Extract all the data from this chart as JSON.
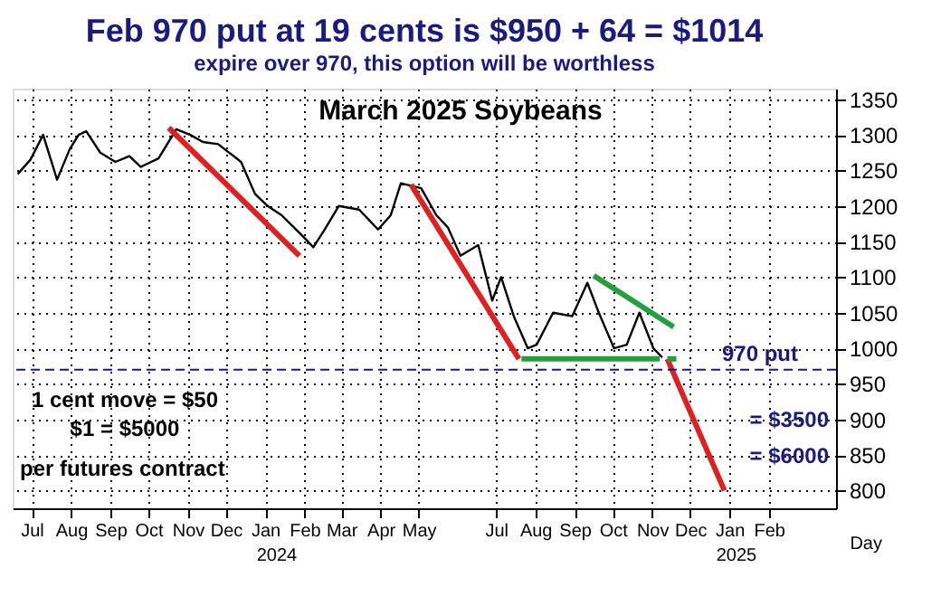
{
  "chart_data": {
    "type": "line",
    "title": "Feb 970 put at 19 cents is $950 + 64 = $1014",
    "subtitle": "expire over 970, this option will be worthless",
    "xlabel": "Day",
    "series": [
      {
        "color": "#000000",
        "x": [
          "2023-07-05",
          "2023-07-15",
          "2023-07-25",
          "2023-08-05",
          "2023-08-15",
          "2023-08-22",
          "2023-08-28",
          "2023-09-08",
          "2023-09-20",
          "2023-10-01",
          "2023-10-10",
          "2023-10-24",
          "2023-11-07",
          "2023-11-18",
          "2023-11-28",
          "2023-12-10",
          "2023-12-28",
          "2024-01-08",
          "2024-01-18",
          "2024-01-29",
          "2024-02-15",
          "2024-02-23",
          "2024-03-03",
          "2024-03-14",
          "2024-03-30",
          "2024-04-14",
          "2024-04-24",
          "2024-05-02",
          "2024-05-18",
          "2024-05-30",
          "2024-06-08",
          "2024-06-18",
          "2024-07-02",
          "2024-07-13",
          "2024-07-20",
          "2024-07-30",
          "2024-08-10",
          "2024-08-17",
          "2024-08-30",
          "2024-09-14",
          "2024-09-26",
          "2024-10-05",
          "2024-10-17",
          "2024-10-27",
          "2024-11-06",
          "2024-11-17",
          "2024-11-24"
        ],
        "values": [
          1245,
          1265,
          1300,
          1237,
          1280,
          1300,
          1305,
          1275,
          1262,
          1270,
          1255,
          1267,
          1308,
          1300,
          1290,
          1287,
          1262,
          1217,
          1200,
          1187,
          1157,
          1142,
          1167,
          1200,
          1195,
          1167,
          1187,
          1232,
          1225,
          1187,
          1170,
          1130,
          1145,
          1067,
          1100,
          1045,
          1000,
          1005,
          1050,
          1045,
          1092,
          1050,
          1000,
          1005,
          1050,
          1000,
          987
        ]
      },
      {
        "color": "#e02020",
        "x": [
          "2023-11-01",
          "2024-02-12"
        ],
        "values": [
          1310,
          1130
        ]
      },
      {
        "color": "#e02020",
        "x": [
          "2024-05-10",
          "2024-08-03"
        ],
        "values": [
          1230,
          985
        ]
      },
      {
        "color": "#e02020",
        "x": [
          "2024-11-28",
          "2025-01-12"
        ],
        "values": [
          985,
          800
        ]
      },
      {
        "color": "#22a040",
        "x": [
          "2024-10-01",
          "2024-12-03"
        ],
        "values": [
          1102,
          1030
        ]
      },
      {
        "color": "#22a040",
        "x": [
          "2024-08-05",
          "2024-11-22"
        ],
        "values": [
          985,
          985
        ]
      },
      {
        "color": "#22a040",
        "x": [
          "2024-11-28",
          "2024-12-08"
        ],
        "values": [
          985,
          985
        ],
        "line_style": "dashed"
      }
    ],
    "xlim": [
      "2023-07-01",
      "2025-04-10"
    ],
    "xticks": [
      {
        "value": "2023-07-16",
        "label": "Jul"
      },
      {
        "value": "2023-08-16",
        "label": "Aug"
      },
      {
        "value": "2023-09-16",
        "label": "Sep"
      },
      {
        "value": "2023-10-16",
        "label": "Oct"
      },
      {
        "value": "2023-11-16",
        "label": "Nov"
      },
      {
        "value": "2023-12-16",
        "label": "Dec"
      },
      {
        "value": "2024-01-16",
        "label": "Jan"
      },
      {
        "value": "2024-02-16",
        "label": "Feb"
      },
      {
        "value": "2024-03-16",
        "label": "Mar"
      },
      {
        "value": "2024-04-16",
        "label": "Apr"
      },
      {
        "value": "2024-05-16",
        "label": "May"
      },
      {
        "value": "2024-07-16",
        "label": "Jul"
      },
      {
        "value": "2024-08-16",
        "label": "Aug"
      },
      {
        "value": "2024-09-16",
        "label": "Sep"
      },
      {
        "value": "2024-10-16",
        "label": "Oct"
      },
      {
        "value": "2024-11-16",
        "label": "Nov"
      },
      {
        "value": "2024-12-16",
        "label": "Dec"
      },
      {
        "value": "2025-01-16",
        "label": "Jan"
      },
      {
        "value": "2025-02-16",
        "label": "Feb"
      }
    ],
    "ylim": [
      775,
      1365
    ],
    "yticks": [
      800,
      850,
      900,
      950,
      1000,
      1050,
      1100,
      1150,
      1200,
      1250,
      1300,
      1350
    ],
    "grid": true,
    "legend": false,
    "ref_lines": [
      {
        "axis": "y",
        "value": 970,
        "label": "970 put",
        "color": "#1a1a80",
        "line_style": "dashed"
      }
    ],
    "annotations": [
      "March 2025 Soybeans",
      "1 cent move = $50",
      "$1 = $5000",
      "per futures contract",
      "= $3500",
      "= $6000",
      "2024",
      "2025"
    ]
  }
}
